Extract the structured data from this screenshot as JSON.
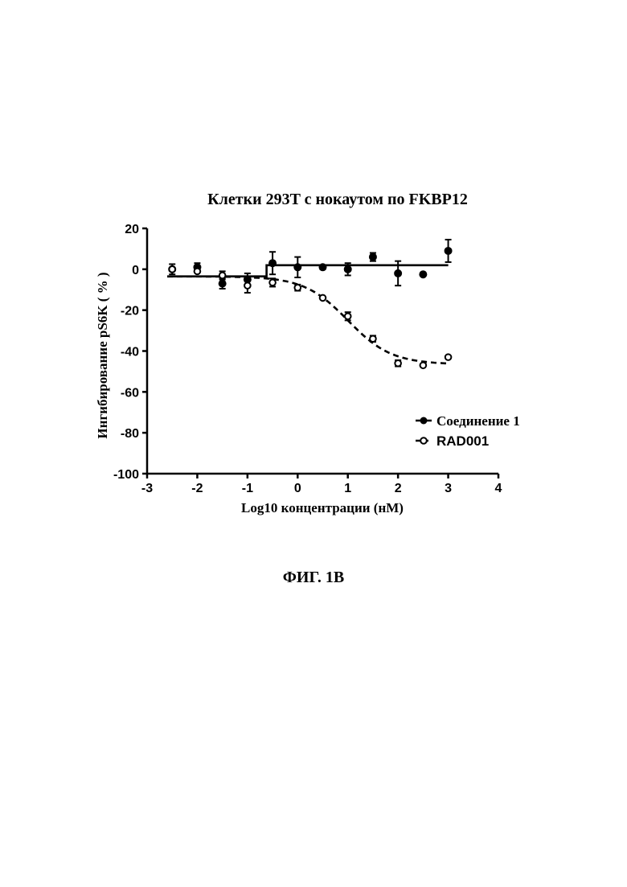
{
  "figure_caption": "ФИГ. 1B",
  "chart_data": {
    "type": "scatter",
    "title": "Клетки 293T с нокаутом по FKBP12",
    "xlabel": "Log10 концентрации (нМ)",
    "ylabel": "Ингибирование pS6K ( % )",
    "xlim": [
      -3,
      4
    ],
    "ylim": [
      -100,
      20
    ],
    "xticks": [
      "-3",
      "-2",
      "-1",
      "0",
      "1",
      "2",
      "3",
      "4"
    ],
    "yticks": [
      "20",
      "0",
      "-20",
      "-40",
      "-60",
      "-80",
      "-100"
    ],
    "grid": false,
    "legend_position": "center-right",
    "series": [
      {
        "name": "Соединение 1",
        "marker": "filled-circle",
        "line_style": "solid",
        "color": "#000000",
        "points": [
          {
            "x": -2.5,
            "y": 0,
            "err": 2.5
          },
          {
            "x": -2,
            "y": 1,
            "err": 2
          },
          {
            "x": -1.5,
            "y": -7,
            "err": 2.5
          },
          {
            "x": -1,
            "y": -5,
            "err": 3
          },
          {
            "x": -0.5,
            "y": 3,
            "err": 5.5
          },
          {
            "x": 0,
            "y": 1,
            "err": 5
          },
          {
            "x": 0.5,
            "y": 1,
            "err": 1
          },
          {
            "x": 1,
            "y": 0,
            "err": 3
          },
          {
            "x": 1.5,
            "y": 6,
            "err": 2
          },
          {
            "x": 2,
            "y": -2,
            "err": 6
          },
          {
            "x": 2.5,
            "y": -2.5,
            "err": 0
          },
          {
            "x": 3,
            "y": 9,
            "err": 5.5
          }
        ],
        "fit": [
          [
            -2.6,
            -3.5
          ],
          [
            -0.62,
            -3.5
          ],
          [
            -0.62,
            2
          ],
          [
            3,
            2
          ]
        ]
      },
      {
        "name": "RAD001",
        "marker": "open-circle",
        "line_style": "dashed",
        "color": "#000000",
        "points": [
          {
            "x": -2.5,
            "y": 0,
            "err": 0
          },
          {
            "x": -2,
            "y": -1,
            "err": 0
          },
          {
            "x": -1.5,
            "y": -3,
            "err": 2
          },
          {
            "x": -1,
            "y": -8,
            "err": 3.5
          },
          {
            "x": -0.5,
            "y": -6.5,
            "err": 2
          },
          {
            "x": 0,
            "y": -9,
            "err": 1.5
          },
          {
            "x": 0.5,
            "y": -14,
            "err": 0.5
          },
          {
            "x": 1,
            "y": -23,
            "err": 2
          },
          {
            "x": 1.5,
            "y": -34,
            "err": 1.5
          },
          {
            "x": 2,
            "y": -46,
            "err": 1.5
          },
          {
            "x": 2.5,
            "y": -47,
            "err": 0
          },
          {
            "x": 3,
            "y": -43,
            "err": 0
          }
        ],
        "fit_model": {
          "bottom": -46.5,
          "top": -3.5,
          "log_ic50": 1.0,
          "hill": 1.0,
          "x_range": [
            -2.6,
            3
          ]
        }
      }
    ]
  }
}
